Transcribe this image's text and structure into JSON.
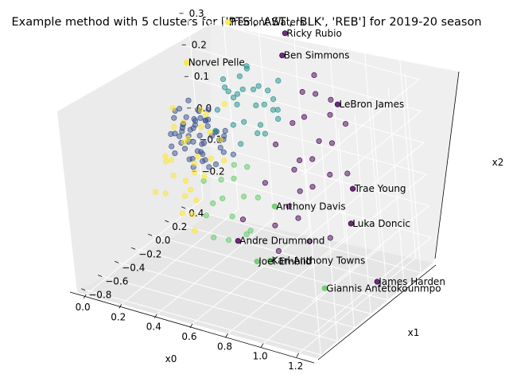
{
  "chart_data": {
    "type": "scatter",
    "title": "Example method with 5 clusters for ['PTS', 'AST', 'BLK', 'REB'] for 2019-20 season",
    "xlabel": "x0",
    "ylabel": "x1",
    "zlabel": "x2",
    "xlim": [
      -0.05,
      1.3
    ],
    "ylim": [
      -0.85,
      0.55
    ],
    "zlim": [
      -0.28,
      0.35
    ],
    "xticks": [
      "0.0",
      "0.2",
      "0.4",
      "0.6",
      "0.8",
      "1.0",
      "1.2"
    ],
    "yticks": [
      "−0.8",
      "−0.6",
      "−0.4",
      "−0.2",
      "0.0",
      "0.2",
      "0.4"
    ],
    "zticks": [
      "−0.2",
      "−0.1",
      "0.0",
      "0.1",
      "0.2",
      "0.3"
    ],
    "grid": true,
    "colors": {
      "cluster_0": "#3b528b",
      "cluster_1": "#21918c",
      "cluster_2": "#440154",
      "cluster_3": "#5ec962",
      "cluster_4": "#fde725"
    },
    "labeled_points": [
      {
        "name": "Ricky Rubio",
        "cluster": 2,
        "x": 0.55,
        "y": 0.55,
        "z": 0.33
      },
      {
        "name": "Ben Simmons",
        "cluster": 2,
        "x": 0.6,
        "y": 0.4,
        "z": 0.3
      },
      {
        "name": "Tremont Waters",
        "cluster": 4,
        "x": 0.2,
        "y": 0.6,
        "z": 0.3
      },
      {
        "name": "LeBron James",
        "cluster": 2,
        "x": 1.0,
        "y": 0.2,
        "z": 0.25
      },
      {
        "name": "Norvel Pelle",
        "cluster": 4,
        "x": 0.2,
        "y": 0.1,
        "z": 0.28
      },
      {
        "name": "Trae Young",
        "cluster": 2,
        "x": 1.1,
        "y": 0.1,
        "z": 0.02
      },
      {
        "name": "Luka Doncic",
        "cluster": 2,
        "x": 1.15,
        "y": -0.05,
        "z": -0.05
      },
      {
        "name": "Anthony Davis",
        "cluster": 3,
        "x": 1.0,
        "y": -0.6,
        "z": 0.1
      },
      {
        "name": "Andre Drummond",
        "cluster": 2,
        "x": 0.85,
        "y": -0.75,
        "z": 0.0
      },
      {
        "name": "James Harden",
        "cluster": 2,
        "x": 1.3,
        "y": -0.1,
        "z": -0.2
      },
      {
        "name": "Karl-Anthony Towns",
        "cluster": 3,
        "x": 1.0,
        "y": -0.7,
        "z": -0.05
      },
      {
        "name": "Joel Embiid",
        "cluster": 3,
        "x": 0.95,
        "y": -0.75,
        "z": -0.05
      },
      {
        "name": "Giannis Antetokounmpo",
        "cluster": 3,
        "x": 1.2,
        "y": -0.5,
        "z": -0.15
      }
    ],
    "series": [
      {
        "cluster": 0,
        "points": [
          [
            0.05,
            0.3,
            0.02
          ],
          [
            0.08,
            0.28,
            0.05
          ],
          [
            0.1,
            0.25,
            0.0
          ],
          [
            0.12,
            0.3,
            0.04
          ],
          [
            0.05,
            0.2,
            0.06
          ],
          [
            0.07,
            0.22,
            -0.02
          ],
          [
            0.1,
            0.18,
            0.03
          ],
          [
            0.12,
            0.15,
            0.05
          ],
          [
            0.15,
            0.2,
            0.0
          ],
          [
            0.14,
            0.25,
            0.06
          ],
          [
            0.18,
            0.22,
            0.02
          ],
          [
            0.2,
            0.18,
            -0.02
          ],
          [
            0.2,
            0.28,
            0.04
          ],
          [
            0.22,
            0.25,
            0.07
          ],
          [
            0.08,
            0.35,
            0.0
          ],
          [
            0.12,
            0.35,
            0.06
          ],
          [
            0.15,
            0.32,
            -0.03
          ],
          [
            0.18,
            0.3,
            0.05
          ],
          [
            0.25,
            0.22,
            0.03
          ],
          [
            0.25,
            0.3,
            0.0
          ],
          [
            0.05,
            0.15,
            0.02
          ],
          [
            0.08,
            0.12,
            -0.03
          ],
          [
            0.1,
            0.1,
            0.04
          ],
          [
            0.15,
            0.1,
            0.0
          ],
          [
            0.18,
            0.12,
            0.06
          ],
          [
            0.22,
            0.15,
            -0.04
          ],
          [
            0.28,
            0.2,
            0.05
          ],
          [
            0.3,
            0.25,
            0.02
          ],
          [
            0.1,
            0.05,
            0.01
          ],
          [
            0.15,
            0.05,
            0.05
          ],
          [
            0.2,
            0.08,
            -0.02
          ],
          [
            0.25,
            0.1,
            0.03
          ],
          [
            0.06,
            0.25,
            0.08
          ],
          [
            0.09,
            0.3,
            0.1
          ],
          [
            0.13,
            0.28,
            -0.05
          ],
          [
            0.16,
            0.26,
            0.09
          ],
          [
            0.19,
            0.24,
            -0.06
          ],
          [
            0.23,
            0.2,
            0.08
          ],
          [
            0.28,
            0.28,
            -0.03
          ],
          [
            0.3,
            0.18,
            0.06
          ],
          [
            0.12,
            0.2,
            -0.06
          ],
          [
            0.07,
            0.18,
            0.09
          ],
          [
            0.16,
            0.16,
            -0.07
          ],
          [
            0.21,
            0.12,
            0.08
          ],
          [
            0.26,
            0.14,
            -0.05
          ],
          [
            0.32,
            0.22,
            0.04
          ],
          [
            0.35,
            0.25,
            -0.02
          ],
          [
            0.33,
            0.15,
            0.02
          ],
          [
            0.11,
            0.38,
            0.03
          ],
          [
            0.17,
            0.36,
            0.07
          ],
          [
            0.06,
            0.32,
            -0.04
          ],
          [
            0.14,
            0.12,
            0.07
          ],
          [
            0.24,
            0.26,
            -0.07
          ],
          [
            0.27,
            0.06,
            0.01
          ],
          [
            0.35,
            0.18,
            0.07
          ]
        ]
      },
      {
        "cluster": 1,
        "points": [
          [
            0.3,
            0.4,
            0.12
          ],
          [
            0.35,
            0.35,
            0.15
          ],
          [
            0.4,
            0.45,
            0.1
          ],
          [
            0.45,
            0.4,
            0.18
          ],
          [
            0.5,
            0.35,
            0.14
          ],
          [
            0.35,
            0.25,
            0.18
          ],
          [
            0.4,
            0.3,
            0.08
          ],
          [
            0.48,
            0.28,
            0.2
          ],
          [
            0.55,
            0.4,
            0.12
          ],
          [
            0.42,
            0.2,
            0.16
          ],
          [
            0.3,
            0.3,
            0.2
          ],
          [
            0.38,
            0.42,
            0.22
          ],
          [
            0.52,
            0.25,
            0.1
          ],
          [
            0.46,
            0.48,
            0.15
          ],
          [
            0.58,
            0.3,
            0.18
          ],
          [
            0.33,
            0.15,
            0.14
          ],
          [
            0.44,
            0.1,
            0.12
          ],
          [
            0.55,
            0.15,
            0.1
          ],
          [
            0.6,
            0.25,
            0.16
          ],
          [
            0.36,
            0.05,
            0.1
          ],
          [
            0.5,
            0.05,
            0.08
          ],
          [
            0.62,
            0.1,
            0.12
          ],
          [
            0.28,
            0.35,
            0.16
          ],
          [
            0.4,
            0.38,
            0.24
          ],
          [
            0.47,
            0.18,
            0.22
          ],
          [
            0.54,
            0.45,
            0.2
          ],
          [
            0.65,
            0.2,
            0.15
          ],
          [
            0.32,
            0.45,
            0.18
          ]
        ]
      },
      {
        "cluster": 2,
        "points": [
          [
            0.7,
            0.4,
            0.2
          ],
          [
            0.75,
            0.3,
            0.15
          ],
          [
            0.8,
            0.35,
            0.22
          ],
          [
            0.85,
            0.25,
            0.1
          ],
          [
            0.9,
            0.3,
            0.18
          ],
          [
            0.78,
            0.15,
            0.05
          ],
          [
            0.88,
            0.1,
            0.08
          ],
          [
            0.95,
            0.2,
            0.12
          ],
          [
            0.72,
            0.2,
            0.0
          ],
          [
            0.82,
            0.05,
            -0.02
          ],
          [
            0.92,
            0.0,
            0.02
          ],
          [
            1.0,
            0.05,
            0.06
          ],
          [
            0.75,
            0.45,
            0.25
          ],
          [
            0.68,
            0.3,
            0.12
          ],
          [
            0.86,
            0.4,
            0.2
          ],
          [
            0.96,
            0.35,
            0.15
          ],
          [
            0.8,
            -0.05,
            -0.05
          ],
          [
            0.9,
            -0.15,
            -0.05
          ],
          [
            0.98,
            -0.2,
            -0.1
          ],
          [
            0.7,
            -0.1,
            0.02
          ],
          [
            0.65,
            0.15,
            0.08
          ],
          [
            1.05,
            0.15,
            0.05
          ],
          [
            1.05,
            -0.1,
            -0.1
          ],
          [
            0.84,
            -0.3,
            -0.05
          ],
          [
            0.76,
            -0.5,
            0.0
          ],
          [
            0.9,
            -0.4,
            -0.1
          ]
        ]
      },
      {
        "cluster": 3,
        "points": [
          [
            0.55,
            -0.3,
            0.05
          ],
          [
            0.6,
            -0.4,
            0.02
          ],
          [
            0.65,
            -0.35,
            0.08
          ],
          [
            0.7,
            -0.5,
            0.0
          ],
          [
            0.75,
            -0.45,
            0.06
          ],
          [
            0.55,
            -0.5,
            -0.02
          ],
          [
            0.62,
            -0.55,
            0.04
          ],
          [
            0.68,
            -0.25,
            0.1
          ],
          [
            0.8,
            -0.55,
            -0.03
          ],
          [
            0.5,
            -0.4,
            0.06
          ],
          [
            0.72,
            -0.6,
            -0.05
          ],
          [
            0.58,
            -0.2,
            0.08
          ],
          [
            0.85,
            -0.6,
            0.0
          ],
          [
            0.78,
            -0.35,
            0.04
          ],
          [
            0.66,
            -0.65,
            -0.04
          ]
        ]
      },
      {
        "cluster": 4,
        "points": [
          [
            0.2,
            0.0,
            0.05
          ],
          [
            0.25,
            -0.05,
            0.08
          ],
          [
            0.3,
            -0.1,
            0.02
          ],
          [
            0.28,
            0.05,
            0.1
          ],
          [
            0.35,
            -0.15,
            0.06
          ],
          [
            0.22,
            -0.2,
            0.04
          ],
          [
            0.38,
            -0.05,
            0.12
          ],
          [
            0.32,
            -0.25,
            0.0
          ],
          [
            0.4,
            -0.3,
            0.05
          ],
          [
            0.45,
            -0.2,
            0.08
          ],
          [
            0.26,
            0.1,
            0.14
          ],
          [
            0.18,
            0.05,
            0.1
          ],
          [
            0.42,
            -0.4,
            0.02
          ],
          [
            0.36,
            -0.35,
            -0.02
          ],
          [
            0.48,
            -0.35,
            0.06
          ],
          [
            0.3,
            -0.45,
            0.0
          ],
          [
            0.5,
            -0.5,
            0.02
          ],
          [
            0.44,
            -0.55,
            -0.02
          ],
          [
            0.24,
            -0.3,
            0.06
          ],
          [
            0.34,
            0.0,
            0.16
          ],
          [
            0.28,
            -0.38,
            0.1
          ],
          [
            0.38,
            -0.5,
            0.08
          ],
          [
            0.52,
            -0.6,
            0.0
          ],
          [
            0.46,
            -0.1,
            0.12
          ],
          [
            0.2,
            -0.1,
            0.12
          ],
          [
            0.15,
            0.0,
            0.15
          ],
          [
            0.4,
            0.1,
            0.18
          ],
          [
            0.55,
            -0.25,
            0.1
          ],
          [
            0.32,
            -0.6,
            0.04
          ],
          [
            0.58,
            -0.7,
            -0.02
          ]
        ]
      }
    ]
  }
}
